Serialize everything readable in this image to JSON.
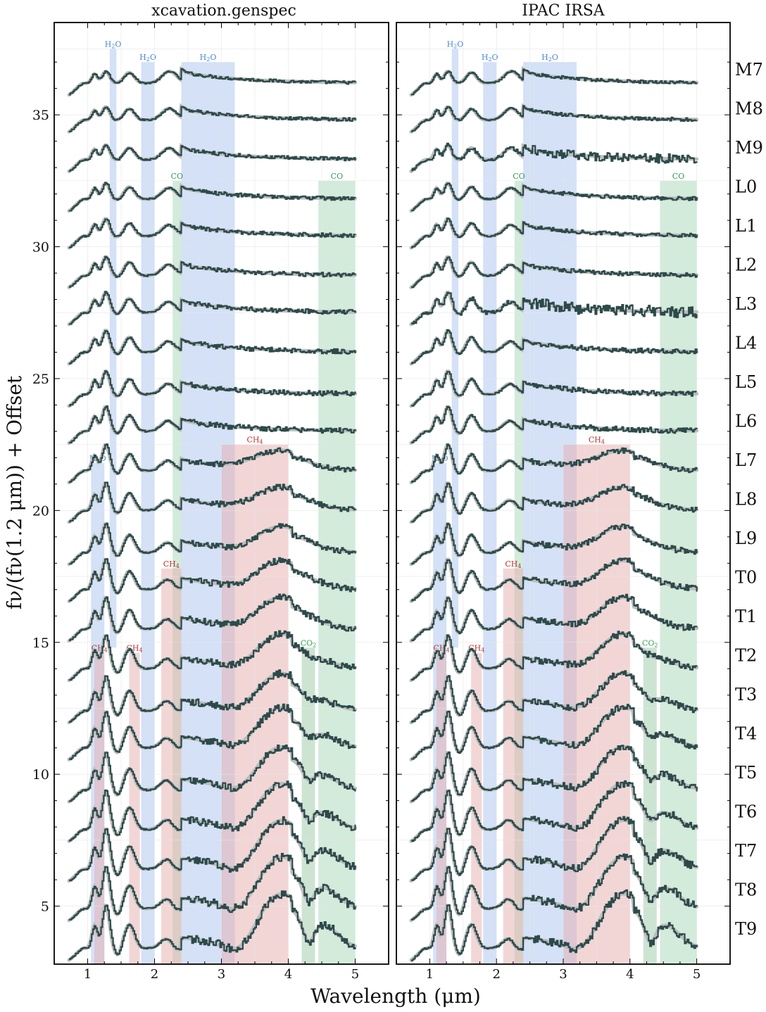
{
  "figure": {
    "ylabel": "fν/(fν(1.2 μm)) + Offset",
    "xlabel": "Wavelength (μm)"
  },
  "chart_data": {
    "type": "line",
    "panels": [
      {
        "title": "xcavation.genspec"
      },
      {
        "title": "IPAC IRSA"
      }
    ],
    "xlim": [
      0.5,
      5.5
    ],
    "ylim": [
      2.8,
      38.5
    ],
    "x_ticks": [
      1,
      2,
      3,
      4,
      5
    ],
    "x_tick_labels": [
      "1",
      "2",
      "3",
      "4",
      "5"
    ],
    "y_ticks": [
      5,
      10,
      15,
      20,
      25,
      30,
      35
    ],
    "y_tick_labels": [
      "5",
      "10",
      "15",
      "20",
      "25",
      "30",
      "35"
    ],
    "spectral_types": [
      "M7",
      "M8",
      "M9",
      "L0",
      "L1",
      "L2",
      "L3",
      "L4",
      "L5",
      "L6",
      "L7",
      "L8",
      "L9",
      "T0",
      "T1",
      "T2",
      "T3",
      "T4",
      "T5",
      "T6",
      "T7",
      "T8",
      "T9"
    ],
    "baseline_offsets": [
      36.2,
      34.8,
      33.3,
      31.8,
      30.4,
      28.9,
      27.5,
      26.0,
      24.4,
      23.0,
      21.5,
      20.0,
      18.4,
      17.0,
      15.5,
      14.0,
      12.4,
      11.0,
      9.4,
      7.9,
      6.4,
      4.9,
      3.4
    ],
    "bands": [
      {
        "label": "H2O",
        "label_main": "H",
        "label_sub": "2",
        "label_rest": "O",
        "x0": 1.33,
        "x1": 1.43,
        "y0": 14.8,
        "y1": 37.5,
        "color": "#a9c4f0",
        "label_color": "#4a86d8"
      },
      {
        "label": "H2O",
        "label_main": "H",
        "label_sub": "2",
        "label_rest": "O",
        "x0": 1.8,
        "x1": 2.0,
        "y0": 2.8,
        "y1": 37.0,
        "color": "#a9c4f0",
        "label_color": "#4a86d8"
      },
      {
        "label": "H2O",
        "label_main": "H",
        "label_sub": "2",
        "label_rest": "O",
        "x0": 2.4,
        "x1": 3.2,
        "y0": 2.8,
        "y1": 37.0,
        "color": "#a9c4f0",
        "label_color": "#4a86d8"
      },
      {
        "label": "H2O",
        "label_main": "H",
        "label_sub": "2",
        "label_rest": "O",
        "x0": 1.05,
        "x1": 1.25,
        "y0": 2.8,
        "y1": 21.8,
        "color": "#a9c4f0",
        "label_color": "#4a86d8"
      },
      {
        "label": "CO",
        "label_main": "CO",
        "label_sub": "",
        "label_rest": "",
        "x0": 2.27,
        "x1": 2.4,
        "y0": 2.8,
        "y1": 32.5,
        "color": "#a8d8b8",
        "label_color": "#2e9e58"
      },
      {
        "label": "CO",
        "label_main": "CO",
        "label_sub": "",
        "label_rest": "",
        "x0": 4.45,
        "x1": 5.0,
        "y0": 2.8,
        "y1": 32.5,
        "color": "#a8d8b8",
        "label_color": "#2e9e58"
      },
      {
        "label": "CH4",
        "label_main": "CH",
        "label_sub": "4",
        "label_rest": "",
        "x0": 3.0,
        "x1": 4.0,
        "y0": 2.8,
        "y1": 22.5,
        "color": "#e6aeae",
        "label_color": "#c03030"
      },
      {
        "label": "CH4",
        "label_main": "CH",
        "label_sub": "4",
        "label_rest": "",
        "x0": 2.1,
        "x1": 2.4,
        "y0": 2.8,
        "y1": 17.8,
        "color": "#e6aeae",
        "label_color": "#c03030"
      },
      {
        "label": "CH4",
        "label_main": "CH",
        "label_sub": "4",
        "label_rest": "",
        "x0": 1.1,
        "x1": 1.25,
        "y0": 2.8,
        "y1": 14.6,
        "color": "#e6aeae",
        "label_color": "#c03030"
      },
      {
        "label": "CH4",
        "label_main": "CH",
        "label_sub": "4",
        "label_rest": "",
        "x0": 1.62,
        "x1": 1.78,
        "y0": 2.8,
        "y1": 14.6,
        "color": "#e6aeae",
        "label_color": "#c03030"
      },
      {
        "label": "CO2",
        "label_main": "CO",
        "label_sub": "2",
        "label_rest": "",
        "x0": 4.2,
        "x1": 4.4,
        "y0": 2.8,
        "y1": 14.8,
        "color": "#9ccaa8",
        "label_color": "#2e9e58"
      }
    ],
    "series_color": "#2d4a4a",
    "reference_color": "#bdbdbd"
  }
}
